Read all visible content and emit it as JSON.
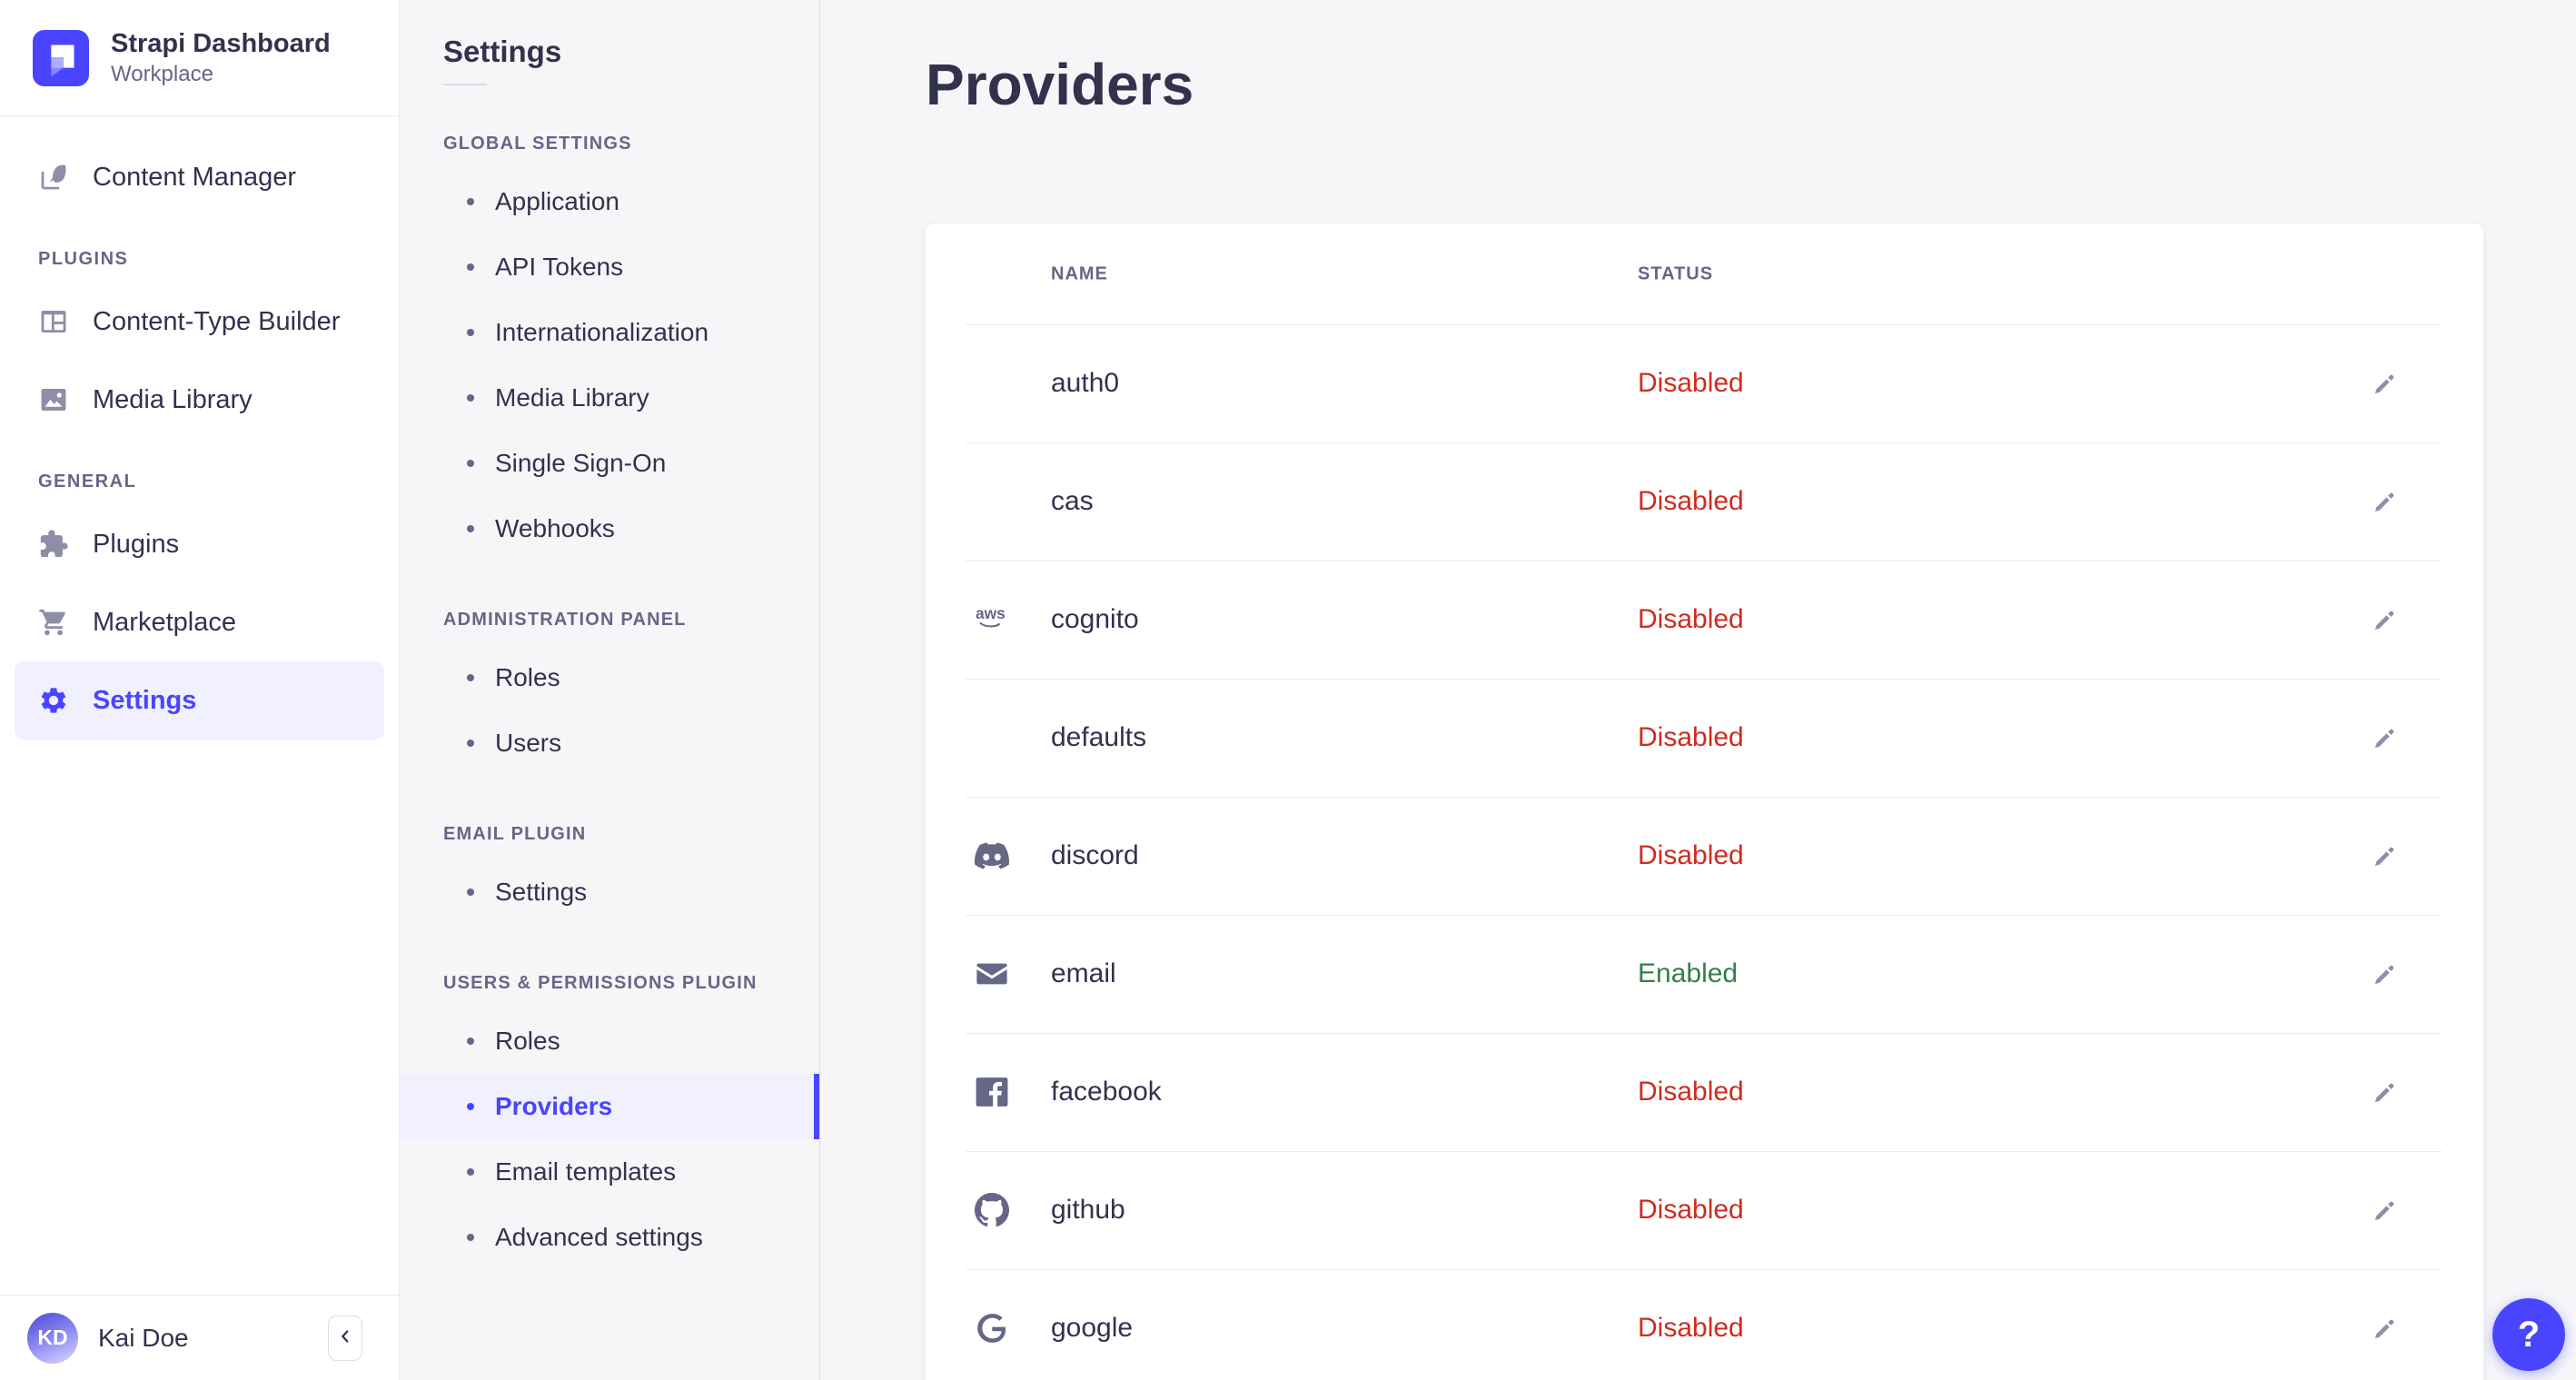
{
  "app": {
    "name": "Strapi Dashboard",
    "workspace": "Workplace",
    "logo_icon": "strapi-logo",
    "user": {
      "name": "Kai Doe",
      "initials": "KD"
    },
    "collapse_icon": "chevron-left",
    "help_label": "?"
  },
  "main_sidebar": {
    "sections": [
      {
        "label": "",
        "items": [
          {
            "label": "Content Manager",
            "icon": "content-manager",
            "active": false
          }
        ]
      },
      {
        "label": "PLUGINS",
        "items": [
          {
            "label": "Content-Type Builder",
            "icon": "content-type-builder",
            "active": false
          },
          {
            "label": "Media Library",
            "icon": "media-library",
            "active": false
          }
        ]
      },
      {
        "label": "GENERAL",
        "items": [
          {
            "label": "Plugins",
            "icon": "plugins",
            "active": false
          },
          {
            "label": "Marketplace",
            "icon": "marketplace",
            "active": false
          },
          {
            "label": "Settings",
            "icon": "settings",
            "active": true
          }
        ]
      }
    ]
  },
  "settings_nav": {
    "title": "Settings",
    "sections": [
      {
        "label": "GLOBAL SETTINGS",
        "items": [
          {
            "label": "Application",
            "active": false
          },
          {
            "label": "API Tokens",
            "active": false
          },
          {
            "label": "Internationalization",
            "active": false
          },
          {
            "label": "Media Library",
            "active": false
          },
          {
            "label": "Single Sign-On",
            "active": false
          },
          {
            "label": "Webhooks",
            "active": false
          }
        ]
      },
      {
        "label": "ADMINISTRATION PANEL",
        "items": [
          {
            "label": "Roles",
            "active": false
          },
          {
            "label": "Users",
            "active": false
          }
        ]
      },
      {
        "label": "EMAIL PLUGIN",
        "items": [
          {
            "label": "Settings",
            "active": false
          }
        ]
      },
      {
        "label": "USERS & PERMISSIONS PLUGIN",
        "items": [
          {
            "label": "Roles",
            "active": false
          },
          {
            "label": "Providers",
            "active": true
          },
          {
            "label": "Email templates",
            "active": false
          },
          {
            "label": "Advanced settings",
            "active": false
          }
        ]
      }
    ]
  },
  "main": {
    "title": "Providers",
    "table": {
      "columns": [
        "NAME",
        "STATUS"
      ],
      "edit_icon": "pencil",
      "rows": [
        {
          "icon": "",
          "name": "auth0",
          "status": "Disabled"
        },
        {
          "icon": "",
          "name": "cas",
          "status": "Disabled"
        },
        {
          "icon": "aws",
          "name": "cognito",
          "status": "Disabled"
        },
        {
          "icon": "",
          "name": "defaults",
          "status": "Disabled"
        },
        {
          "icon": "discord",
          "name": "discord",
          "status": "Disabled"
        },
        {
          "icon": "email",
          "name": "email",
          "status": "Enabled"
        },
        {
          "icon": "facebook",
          "name": "facebook",
          "status": "Disabled"
        },
        {
          "icon": "github",
          "name": "github",
          "status": "Disabled"
        },
        {
          "icon": "google",
          "name": "google",
          "status": "Disabled"
        }
      ]
    }
  },
  "colors": {
    "primary": "#4945ff",
    "primary_bg": "#f0f0ff",
    "disabled": "#d02b20",
    "enabled": "#328048",
    "text": "#32324d",
    "muted": "#666687",
    "subtle": "#8e8ea9",
    "border": "#eaeaef",
    "background": "#f6f6f9"
  }
}
